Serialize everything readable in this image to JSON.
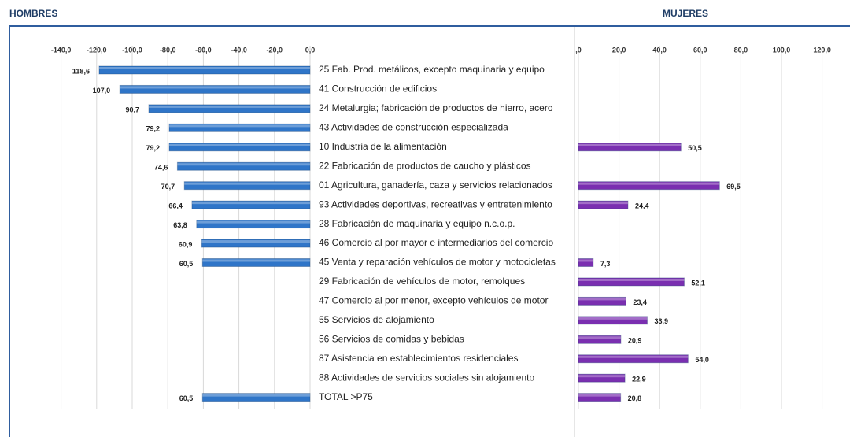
{
  "chart_data": [
    {
      "type": "bar",
      "title": "HOMBRES",
      "categories": [
        "25 Fab. Prod. metálicos, excepto maquinaria y equipo",
        "41 Construcción de edificios",
        "24 Metalurgia; fabricación de productos de hierro, acero",
        "43 Actividades de construcción especializada",
        "10 Industria de la alimentación",
        "22 Fabricación de productos de caucho y plásticos",
        "01 Agricultura, ganadería, caza y servicios relacionados",
        "93 Actividades deportivas, recreativas y entretenimiento",
        "28 Fabricación de maquinaria y equipo n.c.o.p.",
        "46 Comercio al por mayor e intermediarios del comercio",
        "45 Venta y reparación vehículos de motor y motocicletas",
        "29 Fabricación de vehículos de motor, remolques",
        "47 Comercio al por menor, excepto vehículos de motor",
        "55 Servicios de alojamiento",
        "56 Servicios de comidas y bebidas",
        "87 Asistencia en establecimientos residenciales",
        "88 Actividades de servicios sociales sin alojamiento",
        "TOTAL >P75"
      ],
      "values": [
        -118.6,
        -107.0,
        -90.7,
        -79.2,
        -79.2,
        -74.6,
        -70.7,
        -66.4,
        -63.8,
        -60.9,
        -60.5,
        null,
        null,
        null,
        null,
        null,
        null,
        -60.5
      ],
      "value_labels": [
        "118,6",
        "107,0",
        "90,7",
        "79,2",
        "79,2",
        "74,6",
        "70,7",
        "66,4",
        "63,8",
        "60,9",
        "60,5",
        null,
        null,
        null,
        null,
        null,
        null,
        "60,5"
      ],
      "color": "#2f75c8",
      "xlim": [
        -170,
        0
      ],
      "xticks": [
        {
          "value": -140,
          "label": "-140,0"
        },
        {
          "value": -120,
          "label": "-120,0"
        },
        {
          "value": -100,
          "label": "-100,0"
        },
        {
          "value": -80,
          "label": "-80,0"
        },
        {
          "value": -60,
          "label": "-60,0"
        },
        {
          "value": -40,
          "label": "-40,0"
        },
        {
          "value": -20,
          "label": "-20,0"
        },
        {
          "value": 0,
          "label": "0,0"
        }
      ],
      "grid": true
    },
    {
      "type": "bar",
      "title": "MUJERES",
      "values": [
        null,
        null,
        null,
        null,
        50.5,
        null,
        69.5,
        24.4,
        null,
        null,
        7.3,
        52.1,
        23.4,
        33.9,
        20.9,
        54.0,
        22.9,
        20.8
      ],
      "value_labels": [
        null,
        null,
        null,
        null,
        "50,5",
        null,
        "69,5",
        "24,4",
        null,
        null,
        "7,3",
        "52,1",
        "23,4",
        "33,9",
        "20,9",
        "54,0",
        "22,9",
        "20,8"
      ],
      "color": "#7a2fb0",
      "xlim": [
        0,
        133
      ],
      "xticks": [
        {
          "value": 0,
          "label": ",0"
        },
        {
          "value": 20,
          "label": "20,0"
        },
        {
          "value": 40,
          "label": "40,0"
        },
        {
          "value": 60,
          "label": "60,0"
        },
        {
          "value": 80,
          "label": "80,0"
        },
        {
          "value": 100,
          "label": "100,0"
        },
        {
          "value": 120,
          "label": "120,0"
        }
      ],
      "grid": true
    }
  ]
}
